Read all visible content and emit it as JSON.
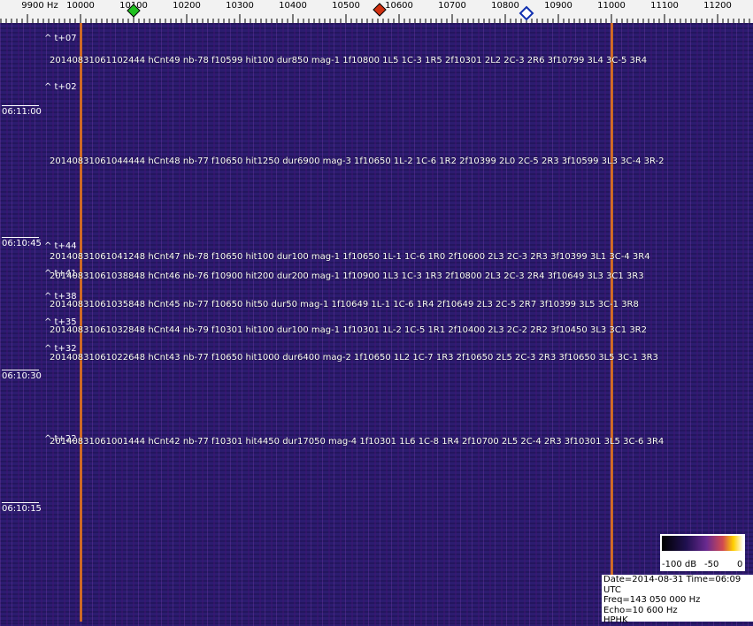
{
  "frequency_axis": {
    "ticks": [
      "9900 Hz",
      "10000",
      "10100",
      "10200",
      "10300",
      "10400",
      "10500",
      "10600",
      "10700",
      "10800",
      "10900",
      "11000",
      "11100",
      "11200"
    ]
  },
  "time_labels": [
    "06:11:00",
    "06:10:45",
    "06:10:30",
    "06:10:15"
  ],
  "markers": [
    "^ t+07",
    "^ t+02",
    "^ t+44",
    "^ t+41",
    "^ t+38",
    "^ t+35",
    "^ t+32",
    "^ t+22"
  ],
  "detections": [
    "20140831061102444 hCnt49 nb-78 f10599 hit100 dur850 mag-1 1f10800 1L5 1C-3 1R5 2f10301 2L2 2C-3 2R6 3f10799 3L4 3C-5 3R4",
    "20140831061044444 hCnt48 nb-77 f10650 hit1250 dur6900 mag-3 1f10650 1L-2 1C-6 1R2 2f10399 2L0 2C-5 2R3 3f10599 3L3 3C-4 3R-2",
    "20140831061041248 hCnt47 nb-78 f10650 hit100 dur100 mag-1 1f10650 1L-1 1C-6 1R0 2f10600 2L3 2C-3 2R3 3f10399 3L1 3C-4 3R4",
    "20140831061038848 hCnt46 nb-76 f10900 hit200 dur200 mag-1 1f10900 1L3 1C-3 1R3 2f10800 2L3 2C-3 2R4 3f10649 3L3 3C1 3R3",
    "20140831061035848 hCnt45 nb-77 f10650 hit50 dur50 mag-1 1f10649 1L-1 1C-6 1R4 2f10649 2L3 2C-5 2R7 3f10399 3L5 3C-1 3R8",
    "20140831061032848 hCnt44 nb-79 f10301 hit100 dur100 mag-1 1f10301 1L-2 1C-5 1R1 2f10400 2L3 2C-2 2R2 3f10450 3L3 3C1 3R2",
    "20140831061022648 hCnt43 nb-77 f10650 hit1000 dur6400 mag-2 1f10650 1L2 1C-7 1R3 2f10650 2L5 2C-3 2R3 3f10650 3L5 3C-1 3R3",
    "20140831061001444 hCnt42 nb-77 f10301 hit4450 dur17050 mag-4 1f10301 1L6 1C-8 1R4 2f10700 2L5 2C-4 2R3 3f10301 3L5 3C-6 3R4"
  ],
  "legend": {
    "labels": [
      "-100 dB",
      "-50",
      "0"
    ]
  },
  "info": {
    "lines": [
      "Date=2014-08-31 Time=06:09 UTC",
      "Freq=143 050 000 Hz",
      "Echo=10 600 Hz",
      "HPHK"
    ]
  }
}
